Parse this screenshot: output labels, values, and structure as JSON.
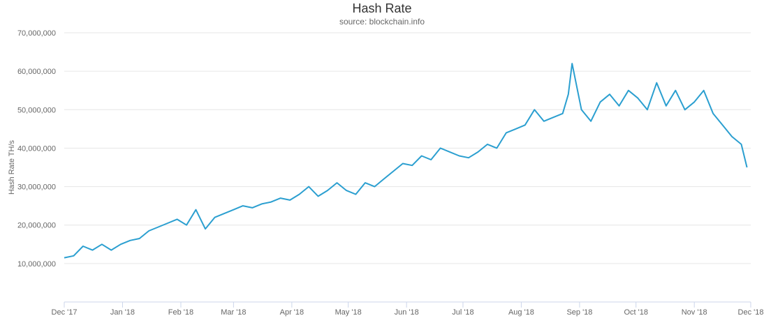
{
  "chart_data": {
    "type": "line",
    "title": "Hash Rate",
    "subtitle": "source: blockchain.info",
    "xlabel": "",
    "ylabel": "Hash Rate TH/s",
    "ylim": [
      0,
      70000000
    ],
    "yticks": [
      10000000,
      20000000,
      30000000,
      40000000,
      50000000,
      60000000,
      70000000
    ],
    "ytick_labels": [
      "10,000,000",
      "20,000,000",
      "30,000,000",
      "40,000,000",
      "50,000,000",
      "60,000,000",
      "70,000,000"
    ],
    "xticks": [
      "2017-12-01",
      "2018-01-01",
      "2018-02-01",
      "2018-03-01",
      "2018-04-01",
      "2018-05-01",
      "2018-06-01",
      "2018-07-01",
      "2018-08-01",
      "2018-09-01",
      "2018-10-01",
      "2018-11-01",
      "2018-12-01"
    ],
    "xtick_labels": [
      "Dec '17",
      "Jan '18",
      "Feb '18",
      "Mar '18",
      "Apr '18",
      "May '18",
      "Jun '18",
      "Jul '18",
      "Aug '18",
      "Sep '18",
      "Oct '18",
      "Nov '18",
      "Dec '18"
    ],
    "xlim": [
      "2017-12-01",
      "2018-12-01"
    ],
    "grid": true,
    "legend": "none",
    "color": "#2b9fd0",
    "series": [
      {
        "name": "",
        "x": [
          "2017-12-01",
          "2017-12-06",
          "2017-12-11",
          "2017-12-16",
          "2017-12-21",
          "2017-12-26",
          "2017-12-31",
          "2018-01-05",
          "2018-01-10",
          "2018-01-15",
          "2018-01-20",
          "2018-01-25",
          "2018-01-30",
          "2018-02-04",
          "2018-02-09",
          "2018-02-14",
          "2018-02-19",
          "2018-02-24",
          "2018-03-01",
          "2018-03-06",
          "2018-03-11",
          "2018-03-16",
          "2018-03-21",
          "2018-03-26",
          "2018-03-31",
          "2018-04-05",
          "2018-04-10",
          "2018-04-15",
          "2018-04-20",
          "2018-04-25",
          "2018-04-30",
          "2018-05-05",
          "2018-05-10",
          "2018-05-15",
          "2018-05-20",
          "2018-05-25",
          "2018-05-30",
          "2018-06-04",
          "2018-06-09",
          "2018-06-14",
          "2018-06-19",
          "2018-06-24",
          "2018-06-29",
          "2018-07-04",
          "2018-07-09",
          "2018-07-14",
          "2018-07-19",
          "2018-07-24",
          "2018-07-29",
          "2018-08-03",
          "2018-08-08",
          "2018-08-13",
          "2018-08-18",
          "2018-08-23",
          "2018-08-26",
          "2018-08-28",
          "2018-09-02",
          "2018-09-07",
          "2018-09-12",
          "2018-09-17",
          "2018-09-22",
          "2018-09-27",
          "2018-10-02",
          "2018-10-07",
          "2018-10-12",
          "2018-10-17",
          "2018-10-22",
          "2018-10-27",
          "2018-11-01",
          "2018-11-06",
          "2018-11-11",
          "2018-11-16",
          "2018-11-21",
          "2018-11-26",
          "2018-11-29"
        ],
        "values": [
          11500000,
          12000000,
          14500000,
          13500000,
          15000000,
          13500000,
          15000000,
          16000000,
          16500000,
          18500000,
          19500000,
          20500000,
          21500000,
          20000000,
          24000000,
          19000000,
          22000000,
          23000000,
          24000000,
          25000000,
          24500000,
          25500000,
          26000000,
          27000000,
          26500000,
          28000000,
          30000000,
          27500000,
          29000000,
          31000000,
          29000000,
          28000000,
          31000000,
          30000000,
          32000000,
          34000000,
          36000000,
          35500000,
          38000000,
          37000000,
          40000000,
          39000000,
          38000000,
          37500000,
          39000000,
          41000000,
          40000000,
          44000000,
          45000000,
          46000000,
          50000000,
          47000000,
          48000000,
          49000000,
          54000000,
          62000000,
          50000000,
          47000000,
          52000000,
          54000000,
          51000000,
          55000000,
          53000000,
          50000000,
          57000000,
          51000000,
          55000000,
          50000000,
          52000000,
          55000000,
          49000000,
          46000000,
          43000000,
          41000000,
          35000000
        ]
      }
    ]
  }
}
